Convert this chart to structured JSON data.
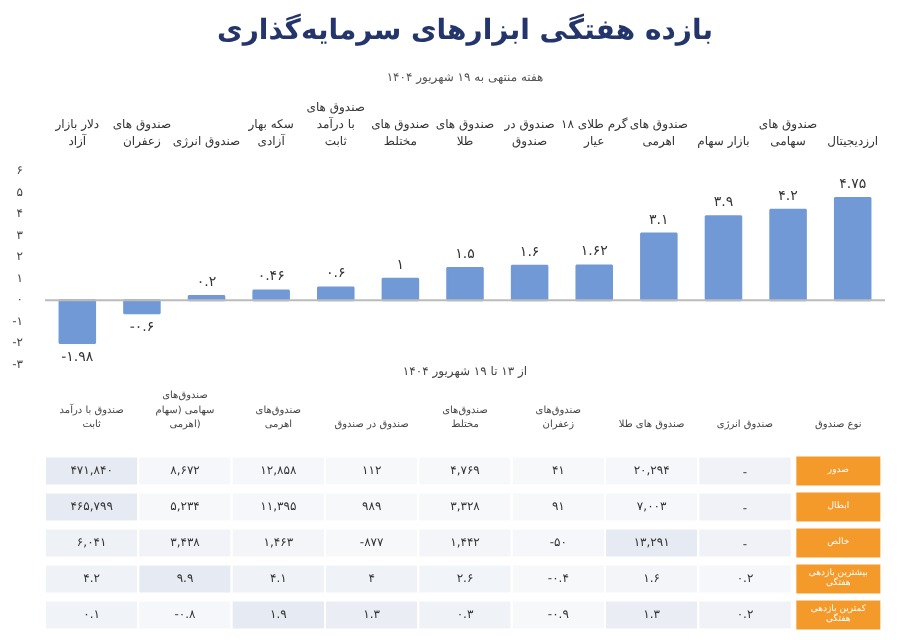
{
  "chart_data": [
    {
      "type": "bar",
      "title": "بازده هفتگی ابزارهای سرمایه‌گذاری",
      "subtitle": "هفته منتهی به ۱۹ شهریور ۱۴۰۴",
      "xlabel": "از ۱۳ تا ۱۹ شهریور ۱۴۰۴",
      "categories": [
        "دلار بازار آزاد",
        "صندوق های زعفران",
        "صندوق انرژی",
        "سکه بهار آزادی",
        "صندوق های با درآمد ثابت",
        "صندوق های مختلط",
        "صندوق های طلا",
        "صندوق در صندوق",
        "گرم طلای ۱۸ عیار",
        "صندوق های اهرمی",
        "بازار سهام",
        "صندوق های سهامی",
        "ارزدیجیتال"
      ],
      "values": [
        -1.98,
        -0.6,
        0.2,
        0.46,
        0.6,
        1,
        1.5,
        1.6,
        1.62,
        3.1,
        3.9,
        4.2,
        4.75
      ],
      "value_labels": [
        "-۱.۹۸",
        "-۰.۶",
        "۰.۲",
        "۰.۴۶",
        "۰.۶",
        "۱",
        "۱.۵",
        "۱.۶",
        "۱.۶۲",
        "۳.۱",
        "۳.۹",
        "۴.۲",
        "۴.۷۵"
      ],
      "color": "#7199d6",
      "ylim": [
        -3,
        6
      ],
      "yticks": [
        {
          "value": -3,
          "label": "-۳"
        },
        {
          "value": -2,
          "label": "-۲"
        },
        {
          "value": -1,
          "label": "-۱"
        },
        {
          "value": 0,
          "label": "۰"
        },
        {
          "value": 1,
          "label": "۱"
        },
        {
          "value": 2,
          "label": "۲"
        },
        {
          "value": 3,
          "label": "۳"
        },
        {
          "value": 4,
          "label": "۴"
        },
        {
          "value": 5,
          "label": "۵"
        },
        {
          "value": 6,
          "label": "۶"
        }
      ],
      "ref_lines": [
        {
          "axis": "y",
          "value": 0,
          "color": "#bbbbbb"
        }
      ]
    },
    {
      "type": "heatmap",
      "ylabel": "نوع صندوق",
      "color": "#e6eaf2",
      "categories": [
        "صندوق با درآمد ثابت",
        "صندوق‌های سهامی (سهام اهرمی)",
        "صندوق‌های اهرمی",
        "صندوق در صندوق",
        "صندوق‌های مختلط",
        "صندوق‌های زعفران",
        "صندوق های طلا",
        "صندوق انرژی"
      ],
      "y_categories": [
        "صدور",
        "ابطال",
        "خالص",
        "بیشترین بازدهی هفتگی",
        "کمترین بازدهی هفتگی"
      ],
      "cells": [
        [
          471840,
          8672,
          12858,
          112,
          4769,
          41,
          20294,
          null
        ],
        [
          465799,
          5234,
          11395,
          989,
          3328,
          91,
          7003,
          null
        ],
        [
          6041,
          3438,
          1463,
          -877,
          1442,
          -50,
          13291,
          null
        ],
        [
          4.2,
          9.9,
          4.1,
          4,
          2.6,
          -0.4,
          1.6,
          0.2
        ],
        [
          0.1,
          -0.8,
          1.9,
          1.3,
          0.3,
          -0.9,
          1.3,
          0.2
        ]
      ],
      "cell_labels": [
        [
          "۴۷۱,۸۴۰",
          "۸,۶۷۲",
          "۱۲,۸۵۸",
          "۱۱۲",
          "۴,۷۶۹",
          "۴۱",
          "۲۰,۲۹۴",
          "-"
        ],
        [
          "۴۶۵,۷۹۹",
          "۵,۲۳۴",
          "۱۱,۳۹۵",
          "۹۸۹",
          "۳,۳۲۸",
          "۹۱",
          "۷,۰۰۳",
          "-"
        ],
        [
          "۶,۰۴۱",
          "۳,۴۳۸",
          "۱,۴۶۳",
          "-۸۷۷",
          "۱,۴۴۲",
          "-۵۰",
          "۱۳,۲۹۱",
          "-"
        ],
        [
          "۴.۲",
          "۹.۹",
          "۴.۱",
          "۴",
          "۲.۶",
          "-۰.۴",
          "۱.۶",
          "۰.۲"
        ],
        [
          "۰.۱",
          "-۰.۸",
          "۱.۹",
          "۱.۳",
          "۰.۳",
          "-۰.۹",
          "۱.۳",
          "۰.۲"
        ]
      ]
    }
  ]
}
